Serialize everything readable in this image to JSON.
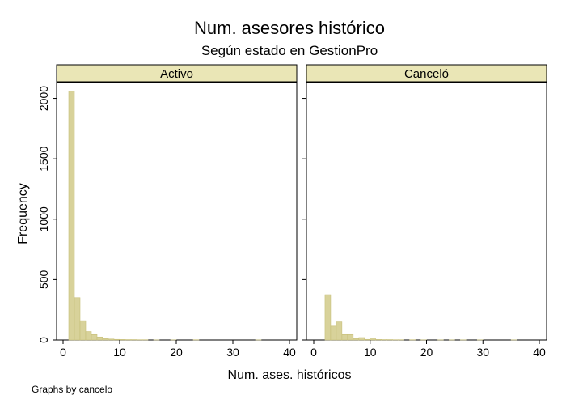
{
  "chart_data": {
    "type": "bar",
    "title": "Num. asesores histórico",
    "subtitle": "Según estado en GestionPro",
    "xlabel": "Num. ases. históricos",
    "ylabel": "Frequency",
    "note": "Graphs by cancelo",
    "xlim": [
      0,
      40
    ],
    "ylim": [
      0,
      2150
    ],
    "x_ticks": [
      0,
      10,
      20,
      30,
      40
    ],
    "y_ticks": [
      0,
      500,
      1000,
      1500,
      2000
    ],
    "bin_width": 1,
    "grid": false,
    "bar_color": "#d8d29a",
    "bar_edge_color": "#c7bf78",
    "strip_color": "#eae6b6",
    "panels": [
      {
        "label": "Activo",
        "bins": [
          {
            "x": 1,
            "count": 2060
          },
          {
            "x": 2,
            "count": 350
          },
          {
            "x": 3,
            "count": 160
          },
          {
            "x": 4,
            "count": 70
          },
          {
            "x": 5,
            "count": 45
          },
          {
            "x": 6,
            "count": 25
          },
          {
            "x": 7,
            "count": 12
          },
          {
            "x": 8,
            "count": 8
          },
          {
            "x": 9,
            "count": 5
          },
          {
            "x": 10,
            "count": 4
          },
          {
            "x": 11,
            "count": 3
          },
          {
            "x": 12,
            "count": 3
          },
          {
            "x": 13,
            "count": 2
          },
          {
            "x": 14,
            "count": 2
          },
          {
            "x": 16,
            "count": 1
          },
          {
            "x": 19,
            "count": 1
          },
          {
            "x": 23,
            "count": 2
          },
          {
            "x": 34,
            "count": 1
          }
        ]
      },
      {
        "label": "Canceló",
        "bins": [
          {
            "x": 2,
            "count": 375
          },
          {
            "x": 3,
            "count": 115
          },
          {
            "x": 4,
            "count": 150
          },
          {
            "x": 5,
            "count": 45
          },
          {
            "x": 6,
            "count": 45
          },
          {
            "x": 7,
            "count": 12
          },
          {
            "x": 8,
            "count": 20
          },
          {
            "x": 9,
            "count": 5
          },
          {
            "x": 10,
            "count": 10
          },
          {
            "x": 11,
            "count": 4
          },
          {
            "x": 12,
            "count": 3
          },
          {
            "x": 13,
            "count": 3
          },
          {
            "x": 14,
            "count": 2
          },
          {
            "x": 15,
            "count": 2
          },
          {
            "x": 17,
            "count": 2
          },
          {
            "x": 19,
            "count": 1
          },
          {
            "x": 22,
            "count": 1
          },
          {
            "x": 24,
            "count": 1
          },
          {
            "x": 26,
            "count": 1
          },
          {
            "x": 29,
            "count": 1
          },
          {
            "x": 35,
            "count": 1
          }
        ]
      }
    ]
  }
}
